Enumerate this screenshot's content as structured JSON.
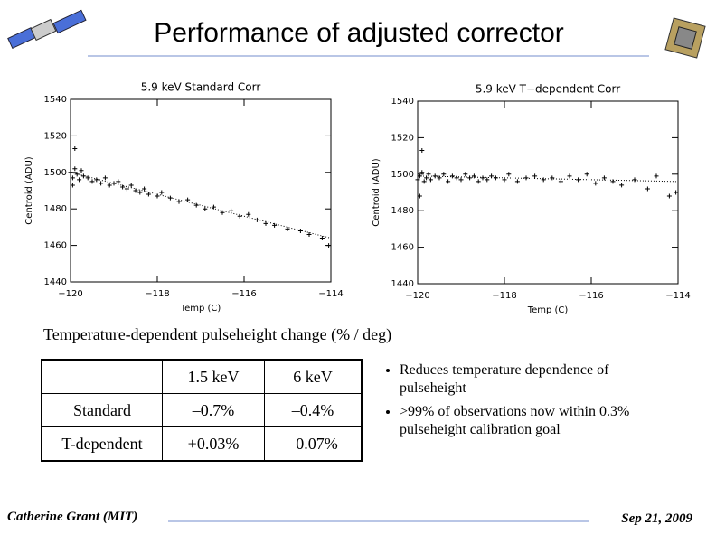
{
  "title": "Performance of adjusted corrector",
  "chart_data": [
    {
      "type": "scatter",
      "title": "5.9 keV Standard Corr",
      "x_label": "Temp (C)",
      "y_label": "Centroid (ADU)",
      "xlim": [
        -120,
        -114
      ],
      "ylim": [
        1440,
        1540
      ],
      "xticks": [
        {
          "value": -120,
          "label": "−120"
        },
        {
          "value": -118,
          "label": "−118"
        },
        {
          "value": -116,
          "label": "−116"
        },
        {
          "value": -114,
          "label": "−114"
        }
      ],
      "yticks": [
        1440,
        1460,
        1480,
        1500,
        1520,
        1540
      ],
      "color": "#000000",
      "x": [
        -120.0,
        -119.95,
        -119.9,
        -119.85,
        -119.8,
        -119.75,
        -119.7,
        -119.6,
        -119.5,
        -119.4,
        -119.3,
        -119.2,
        -119.1,
        -119.0,
        -118.9,
        -118.8,
        -118.7,
        -118.6,
        -118.5,
        -118.4,
        -118.3,
        -118.2,
        -118.0,
        -117.9,
        -117.7,
        -117.5,
        -117.3,
        -117.1,
        -116.9,
        -116.7,
        -116.5,
        -116.3,
        -116.1,
        -115.9,
        -115.7,
        -115.5,
        -115.3,
        -115.0,
        -114.7,
        -114.5,
        -114.2,
        -114.05,
        -119.9,
        -119.95
      ],
      "y": [
        1500,
        1497,
        1502,
        1499,
        1496,
        1501,
        1498,
        1497,
        1495,
        1496,
        1494,
        1497,
        1493,
        1494,
        1495,
        1492,
        1491,
        1493,
        1490,
        1489,
        1491,
        1488,
        1487,
        1489,
        1486,
        1484,
        1485,
        1482,
        1480,
        1481,
        1478,
        1479,
        1476,
        1477,
        1474,
        1472,
        1471,
        1469,
        1468,
        1466,
        1464,
        1460,
        1513,
        1493
      ],
      "fit": {
        "x": [
          -120,
          -114
        ],
        "y": [
          1500,
          1464
        ]
      }
    },
    {
      "type": "scatter",
      "title": "5.9 keV T−dependent Corr",
      "x_label": "Temp (C)",
      "y_label": "Centroid (ADU)",
      "xlim": [
        -120,
        -114
      ],
      "ylim": [
        1440,
        1540
      ],
      "xticks": [
        {
          "value": -120,
          "label": "−120"
        },
        {
          "value": -118,
          "label": "−118"
        },
        {
          "value": -116,
          "label": "−116"
        },
        {
          "value": -114,
          "label": "−114"
        }
      ],
      "yticks": [
        1440,
        1460,
        1480,
        1500,
        1520,
        1540
      ],
      "color": "#000000",
      "x": [
        -120.0,
        -119.95,
        -119.9,
        -119.85,
        -119.8,
        -119.75,
        -119.7,
        -119.6,
        -119.5,
        -119.4,
        -119.3,
        -119.2,
        -119.1,
        -119.0,
        -118.9,
        -118.8,
        -118.7,
        -118.6,
        -118.5,
        -118.4,
        -118.3,
        -118.2,
        -118.0,
        -117.9,
        -117.7,
        -117.5,
        -117.3,
        -117.1,
        -116.9,
        -116.7,
        -116.5,
        -116.3,
        -116.1,
        -115.9,
        -115.7,
        -115.5,
        -115.3,
        -115.0,
        -114.7,
        -114.5,
        -114.2,
        -114.05,
        -119.9,
        -119.95
      ],
      "y": [
        1497,
        1499,
        1501,
        1496,
        1498,
        1500,
        1497,
        1499,
        1498,
        1500,
        1496,
        1499,
        1498,
        1497,
        1500,
        1498,
        1499,
        1496,
        1498,
        1497,
        1499,
        1498,
        1497,
        1500,
        1496,
        1498,
        1499,
        1497,
        1498,
        1496,
        1499,
        1497,
        1500,
        1495,
        1498,
        1496,
        1494,
        1497,
        1492,
        1499,
        1488,
        1490,
        1513,
        1488
      ],
      "fit": {
        "x": [
          -120,
          -114
        ],
        "y": [
          1499,
          1496
        ]
      }
    }
  ],
  "caption": "Temperature-dependent pulseheight change (% / deg)",
  "table": {
    "header": [
      "1.5 keV",
      "6 keV"
    ],
    "rows": [
      [
        "Standard",
        "–0.7%",
        "–0.4%"
      ],
      [
        "T-dependent",
        "+0.03%",
        "–0.07%"
      ]
    ]
  },
  "bullets": [
    "Reduces temperature dependence of pulseheight",
    ">99% of observations now within 0.3% pulseheight calibration goal"
  ],
  "footer": {
    "author": "Catherine Grant (MIT)",
    "date": "Sep 21, 2009"
  }
}
